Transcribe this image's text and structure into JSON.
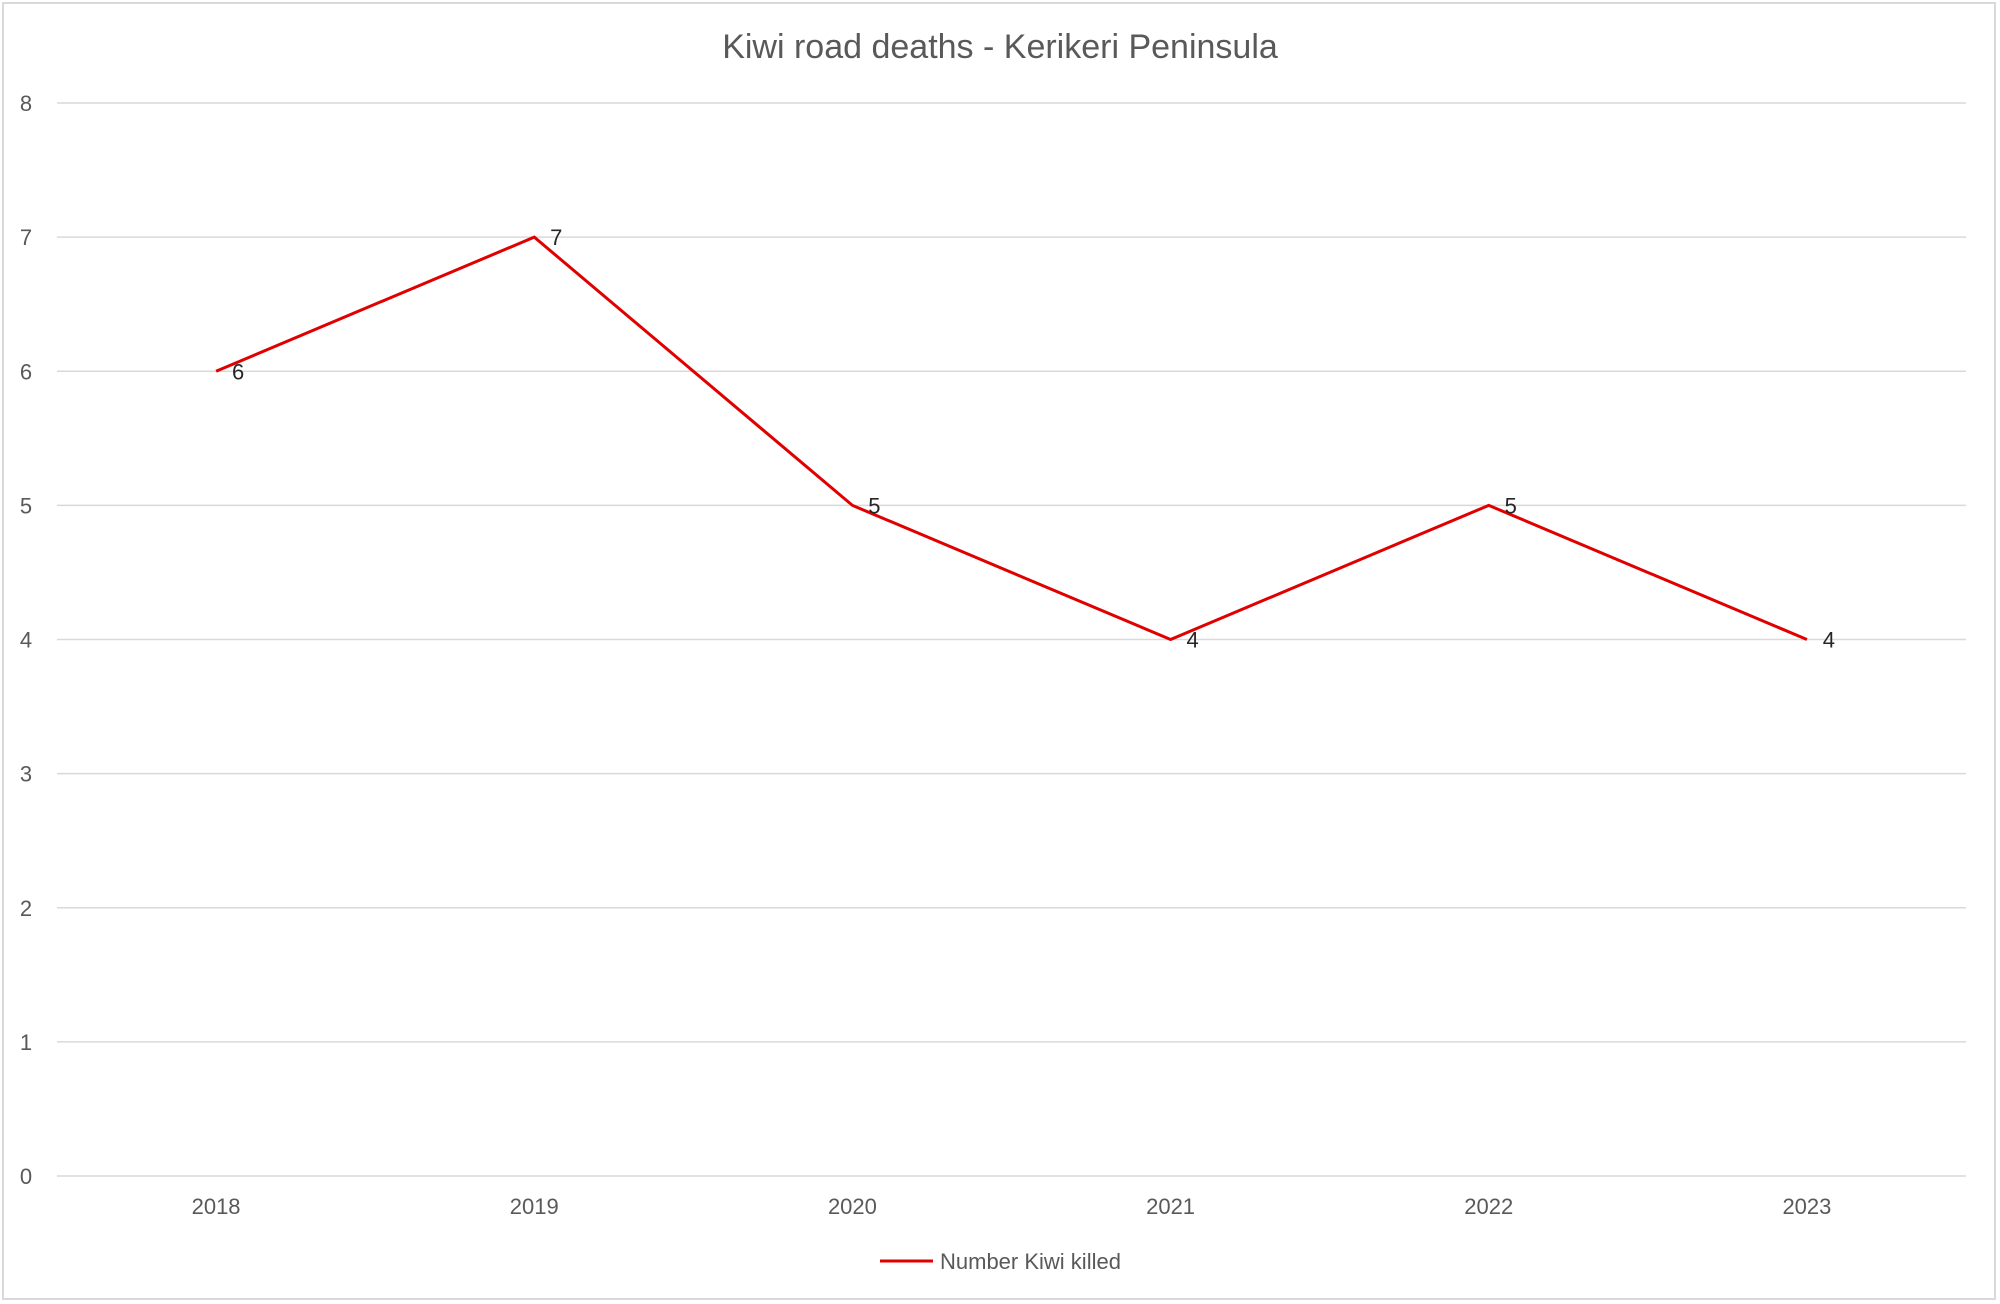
{
  "chart_data": {
    "type": "line",
    "title": "Kiwi road deaths - Kerikeri Peninsula",
    "categories": [
      "2018",
      "2019",
      "2020",
      "2021",
      "2022",
      "2023"
    ],
    "series": [
      {
        "name": "Number Kiwi killed",
        "values": [
          6,
          7,
          5,
          4,
          5,
          4
        ],
        "color": "#e00000"
      }
    ],
    "ylim": [
      0,
      8
    ],
    "yticks": [
      0,
      1,
      2,
      3,
      4,
      5,
      6,
      7,
      8
    ],
    "grid": true,
    "legend": "bottom",
    "data_labels": true
  }
}
